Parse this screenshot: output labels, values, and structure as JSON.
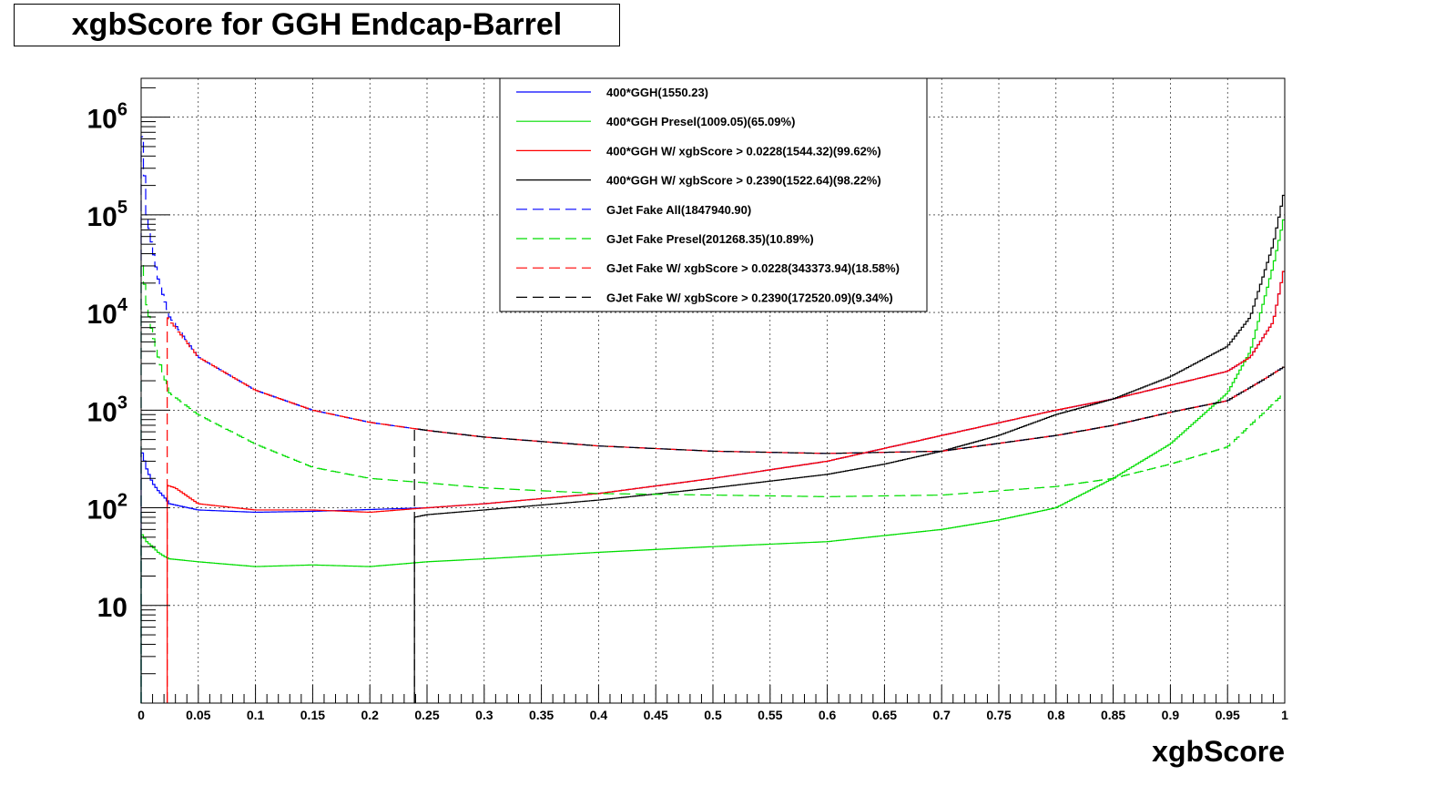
{
  "chart_data": {
    "type": "line",
    "title": "xgbScore for GGH Endcap-Barrel",
    "xlabel": "xgbScore",
    "ylabel": "",
    "xlim": [
      0,
      1
    ],
    "ylim": [
      1,
      2500000
    ],
    "yscale": "log",
    "grid": true,
    "legend_position": "top-center",
    "x_ticks": [
      "0",
      "0.05",
      "0.1",
      "0.15",
      "0.2",
      "0.25",
      "0.3",
      "0.35",
      "0.4",
      "0.45",
      "0.5",
      "0.55",
      "0.6",
      "0.65",
      "0.7",
      "0.75",
      "0.8",
      "0.85",
      "0.9",
      "0.95",
      "1"
    ],
    "y_ticks": [
      {
        "value": 10,
        "base": "10",
        "exp": ""
      },
      {
        "value": 100,
        "base": "10",
        "exp": "2"
      },
      {
        "value": 1000,
        "base": "10",
        "exp": "3"
      },
      {
        "value": 10000,
        "base": "10",
        "exp": "4"
      },
      {
        "value": 100000,
        "base": "10",
        "exp": "5"
      },
      {
        "value": 1000000,
        "base": "10",
        "exp": "6"
      }
    ],
    "series": [
      {
        "name": "400*GGH(1550.23)",
        "color": "#0000ff",
        "dash": "solid",
        "x": [
          0,
          0.005,
          0.01,
          0.015,
          0.02,
          0.025,
          0.05,
          0.1,
          0.15,
          0.2,
          0.25,
          0.3,
          0.4,
          0.5,
          0.6,
          0.7,
          0.8,
          0.85,
          0.9,
          0.95,
          0.97,
          0.99,
          1
        ],
        "y": [
          400,
          250,
          180,
          150,
          130,
          110,
          95,
          90,
          92,
          96,
          100,
          110,
          140,
          200,
          300,
          550,
          1000,
          1300,
          1800,
          2500,
          3500,
          8000,
          30000
        ]
      },
      {
        "name": "400*GGH Presel(1009.05)(65.09%)",
        "color": "#00dd00",
        "dash": "solid",
        "x": [
          0,
          0.005,
          0.01,
          0.015,
          0.02,
          0.025,
          0.05,
          0.1,
          0.15,
          0.2,
          0.25,
          0.3,
          0.4,
          0.5,
          0.6,
          0.7,
          0.75,
          0.8,
          0.85,
          0.9,
          0.95,
          0.97,
          0.99,
          1
        ],
        "y": [
          55,
          45,
          40,
          35,
          32,
          30,
          28,
          25,
          26,
          25,
          28,
          30,
          35,
          40,
          45,
          60,
          75,
          100,
          200,
          450,
          1500,
          4000,
          30000,
          100000
        ]
      },
      {
        "name": "400*GGH W/ xgbScore > 0.0228(1544.32)(99.62%)",
        "color": "#ff0000",
        "dash": "solid",
        "x": [
          0.0228,
          0.03,
          0.05,
          0.1,
          0.15,
          0.2,
          0.25,
          0.3,
          0.4,
          0.5,
          0.6,
          0.7,
          0.8,
          0.85,
          0.9,
          0.95,
          0.97,
          0.99,
          1
        ],
        "y": [
          170,
          160,
          110,
          95,
          95,
          90,
          100,
          110,
          140,
          200,
          300,
          550,
          1000,
          1300,
          1800,
          2500,
          3500,
          8000,
          30000
        ]
      },
      {
        "name": "400*GGH W/ xgbScore > 0.2390(1522.64)(98.22%)",
        "color": "#000000",
        "dash": "solid",
        "x": [
          0.239,
          0.25,
          0.3,
          0.4,
          0.5,
          0.6,
          0.65,
          0.7,
          0.75,
          0.8,
          0.85,
          0.9,
          0.95,
          0.97,
          0.99,
          1
        ],
        "y": [
          80,
          85,
          95,
          120,
          160,
          220,
          280,
          380,
          550,
          900,
          1300,
          2200,
          4500,
          9000,
          50000,
          180000
        ]
      },
      {
        "name": "GJet Fake All(1847940.90)",
        "color": "#0000ff",
        "dash": "dashed",
        "x": [
          0,
          0.005,
          0.01,
          0.015,
          0.02,
          0.025,
          0.05,
          0.1,
          0.15,
          0.2,
          0.25,
          0.3,
          0.4,
          0.5,
          0.6,
          0.7,
          0.8,
          0.85,
          0.9,
          0.95,
          0.98,
          1
        ],
        "y": [
          1000000,
          100000,
          45000,
          22000,
          14000,
          9000,
          3500,
          1600,
          1000,
          750,
          620,
          530,
          430,
          380,
          360,
          380,
          550,
          700,
          950,
          1250,
          2000,
          2800
        ]
      },
      {
        "name": "GJet Fake Presel(201268.35)(10.89%)",
        "color": "#00dd00",
        "dash": "dashed",
        "x": [
          0,
          0.005,
          0.01,
          0.015,
          0.02,
          0.025,
          0.05,
          0.1,
          0.15,
          0.2,
          0.25,
          0.3,
          0.4,
          0.5,
          0.6,
          0.7,
          0.8,
          0.85,
          0.9,
          0.95,
          0.98,
          1
        ],
        "y": [
          40000,
          12000,
          6000,
          3500,
          2200,
          1500,
          900,
          450,
          260,
          200,
          180,
          160,
          140,
          135,
          130,
          135,
          165,
          200,
          280,
          420,
          900,
          1500
        ]
      },
      {
        "name": "GJet Fake W/ xgbScore > 0.0228(343373.94)(18.58%)",
        "color": "#ff0000",
        "dash": "dashed",
        "x": [
          0.0228,
          0.05,
          0.1,
          0.15,
          0.2,
          0.25,
          0.3,
          0.4,
          0.5,
          0.6,
          0.7,
          0.8,
          0.85,
          0.9,
          0.95,
          0.98,
          1
        ],
        "y": [
          9000,
          3500,
          1600,
          1000,
          750,
          620,
          530,
          430,
          380,
          360,
          380,
          550,
          700,
          950,
          1250,
          2000,
          2800
        ]
      },
      {
        "name": "GJet Fake W/ xgbScore > 0.2390(172520.09)(9.34%)",
        "color": "#000000",
        "dash": "dashed",
        "x": [
          0.239,
          0.25,
          0.3,
          0.4,
          0.5,
          0.6,
          0.7,
          0.8,
          0.85,
          0.9,
          0.95,
          0.98,
          1
        ],
        "y": [
          650,
          620,
          530,
          430,
          380,
          360,
          380,
          550,
          700,
          950,
          1250,
          2000,
          2800
        ]
      }
    ]
  }
}
